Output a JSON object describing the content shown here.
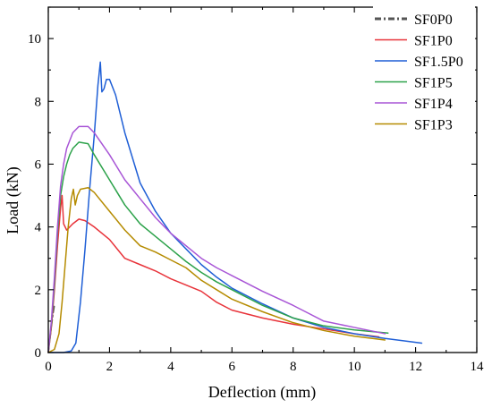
{
  "chart_data": {
    "type": "line",
    "xlabel": "Deflection (mm)",
    "ylabel": "Load (kN)",
    "xlim": [
      0,
      14
    ],
    "ylim": [
      0,
      11
    ],
    "xticks": [
      0,
      2,
      4,
      6,
      8,
      10,
      12,
      14
    ],
    "yticks": [
      0,
      2,
      4,
      6,
      8,
      10
    ],
    "xtick_labels": [
      "0",
      "2",
      "4",
      "6",
      "8",
      "10",
      "12",
      "14"
    ],
    "ytick_labels": [
      "0",
      "2",
      "4",
      "6",
      "8",
      "10"
    ],
    "grid": false,
    "legend_position": "top-right",
    "series": [
      {
        "name": "SF0P0",
        "color": "#555555",
        "dash": "dash-dot",
        "points": [
          [
            0,
            0
          ],
          [
            0.05,
            0.4
          ],
          [
            0.1,
            0.8
          ],
          [
            0.15,
            1.2
          ],
          [
            0.2,
            1.5
          ]
        ]
      },
      {
        "name": "SF1P0",
        "color": "#e8333a",
        "points": [
          [
            0,
            0
          ],
          [
            0.1,
            0.8
          ],
          [
            0.2,
            2.0
          ],
          [
            0.3,
            3.4
          ],
          [
            0.4,
            4.6
          ],
          [
            0.45,
            5.0
          ],
          [
            0.5,
            4.1
          ],
          [
            0.6,
            3.9
          ],
          [
            0.8,
            4.1
          ],
          [
            1.0,
            4.25
          ],
          [
            1.2,
            4.2
          ],
          [
            1.5,
            4.0
          ],
          [
            2.0,
            3.6
          ],
          [
            2.5,
            3.0
          ],
          [
            3.0,
            2.8
          ],
          [
            3.5,
            2.6
          ],
          [
            4.0,
            2.35
          ],
          [
            4.5,
            2.15
          ],
          [
            5.0,
            1.95
          ],
          [
            5.5,
            1.6
          ],
          [
            6.0,
            1.35
          ],
          [
            7.0,
            1.1
          ],
          [
            8.0,
            0.9
          ],
          [
            9.0,
            0.75
          ],
          [
            10.0,
            0.6
          ],
          [
            10.8,
            0.5
          ]
        ]
      },
      {
        "name": "SF1.5P0",
        "color": "#1f5fd6",
        "points": [
          [
            0,
            0
          ],
          [
            0.5,
            0.0
          ],
          [
            0.75,
            0.05
          ],
          [
            0.9,
            0.3
          ],
          [
            1.05,
            1.6
          ],
          [
            1.2,
            3.3
          ],
          [
            1.35,
            5.2
          ],
          [
            1.5,
            6.9
          ],
          [
            1.62,
            8.5
          ],
          [
            1.7,
            9.25
          ],
          [
            1.75,
            8.3
          ],
          [
            1.82,
            8.4
          ],
          [
            1.9,
            8.7
          ],
          [
            2.0,
            8.7
          ],
          [
            2.2,
            8.2
          ],
          [
            2.5,
            7.0
          ],
          [
            3.0,
            5.4
          ],
          [
            3.5,
            4.5
          ],
          [
            4.0,
            3.8
          ],
          [
            4.5,
            3.3
          ],
          [
            5.0,
            2.8
          ],
          [
            5.5,
            2.4
          ],
          [
            6.0,
            2.05
          ],
          [
            7.0,
            1.55
          ],
          [
            8.0,
            1.1
          ],
          [
            9.0,
            0.8
          ],
          [
            10.0,
            0.6
          ],
          [
            11.0,
            0.45
          ],
          [
            12.2,
            0.3
          ]
        ]
      },
      {
        "name": "SF1P5",
        "color": "#2ca24a",
        "points": [
          [
            0,
            0
          ],
          [
            0.1,
            0.9
          ],
          [
            0.2,
            2.2
          ],
          [
            0.3,
            3.8
          ],
          [
            0.4,
            5.0
          ],
          [
            0.5,
            5.6
          ],
          [
            0.6,
            6.0
          ],
          [
            0.7,
            6.3
          ],
          [
            0.8,
            6.5
          ],
          [
            1.0,
            6.7
          ],
          [
            1.3,
            6.65
          ],
          [
            1.5,
            6.3
          ],
          [
            2.0,
            5.5
          ],
          [
            2.5,
            4.7
          ],
          [
            3.0,
            4.1
          ],
          [
            3.5,
            3.7
          ],
          [
            4.0,
            3.3
          ],
          [
            4.5,
            2.9
          ],
          [
            5.0,
            2.55
          ],
          [
            5.5,
            2.25
          ],
          [
            6.0,
            2.0
          ],
          [
            7.0,
            1.5
          ],
          [
            8.0,
            1.1
          ],
          [
            9.0,
            0.85
          ],
          [
            10.0,
            0.72
          ],
          [
            11.1,
            0.62
          ]
        ]
      },
      {
        "name": "SF1P4",
        "color": "#a855d6",
        "points": [
          [
            0,
            0
          ],
          [
            0.1,
            1.0
          ],
          [
            0.2,
            2.4
          ],
          [
            0.3,
            4.0
          ],
          [
            0.4,
            5.3
          ],
          [
            0.5,
            6.0
          ],
          [
            0.6,
            6.5
          ],
          [
            0.8,
            7.0
          ],
          [
            1.0,
            7.2
          ],
          [
            1.3,
            7.2
          ],
          [
            1.5,
            7.0
          ],
          [
            2.0,
            6.3
          ],
          [
            2.5,
            5.5
          ],
          [
            3.0,
            4.9
          ],
          [
            3.5,
            4.3
          ],
          [
            4.0,
            3.8
          ],
          [
            4.5,
            3.4
          ],
          [
            5.0,
            3.0
          ],
          [
            5.5,
            2.7
          ],
          [
            6.0,
            2.45
          ],
          [
            7.0,
            1.95
          ],
          [
            8.0,
            1.5
          ],
          [
            8.5,
            1.25
          ],
          [
            9.0,
            1.0
          ],
          [
            10.0,
            0.8
          ],
          [
            11.0,
            0.6
          ]
        ]
      },
      {
        "name": "SF1P3",
        "color": "#b58b00",
        "points": [
          [
            0,
            0
          ],
          [
            0.2,
            0.1
          ],
          [
            0.35,
            0.6
          ],
          [
            0.45,
            1.6
          ],
          [
            0.55,
            2.8
          ],
          [
            0.65,
            4.0
          ],
          [
            0.75,
            4.9
          ],
          [
            0.82,
            5.2
          ],
          [
            0.88,
            4.7
          ],
          [
            0.95,
            5.0
          ],
          [
            1.05,
            5.2
          ],
          [
            1.3,
            5.25
          ],
          [
            1.5,
            5.1
          ],
          [
            2.0,
            4.5
          ],
          [
            2.5,
            3.9
          ],
          [
            3.0,
            3.4
          ],
          [
            3.5,
            3.2
          ],
          [
            4.0,
            2.95
          ],
          [
            4.5,
            2.7
          ],
          [
            5.0,
            2.3
          ],
          [
            5.5,
            2.0
          ],
          [
            6.0,
            1.7
          ],
          [
            7.0,
            1.3
          ],
          [
            8.0,
            0.95
          ],
          [
            9.0,
            0.7
          ],
          [
            10.0,
            0.52
          ],
          [
            11.0,
            0.4
          ]
        ]
      }
    ]
  }
}
